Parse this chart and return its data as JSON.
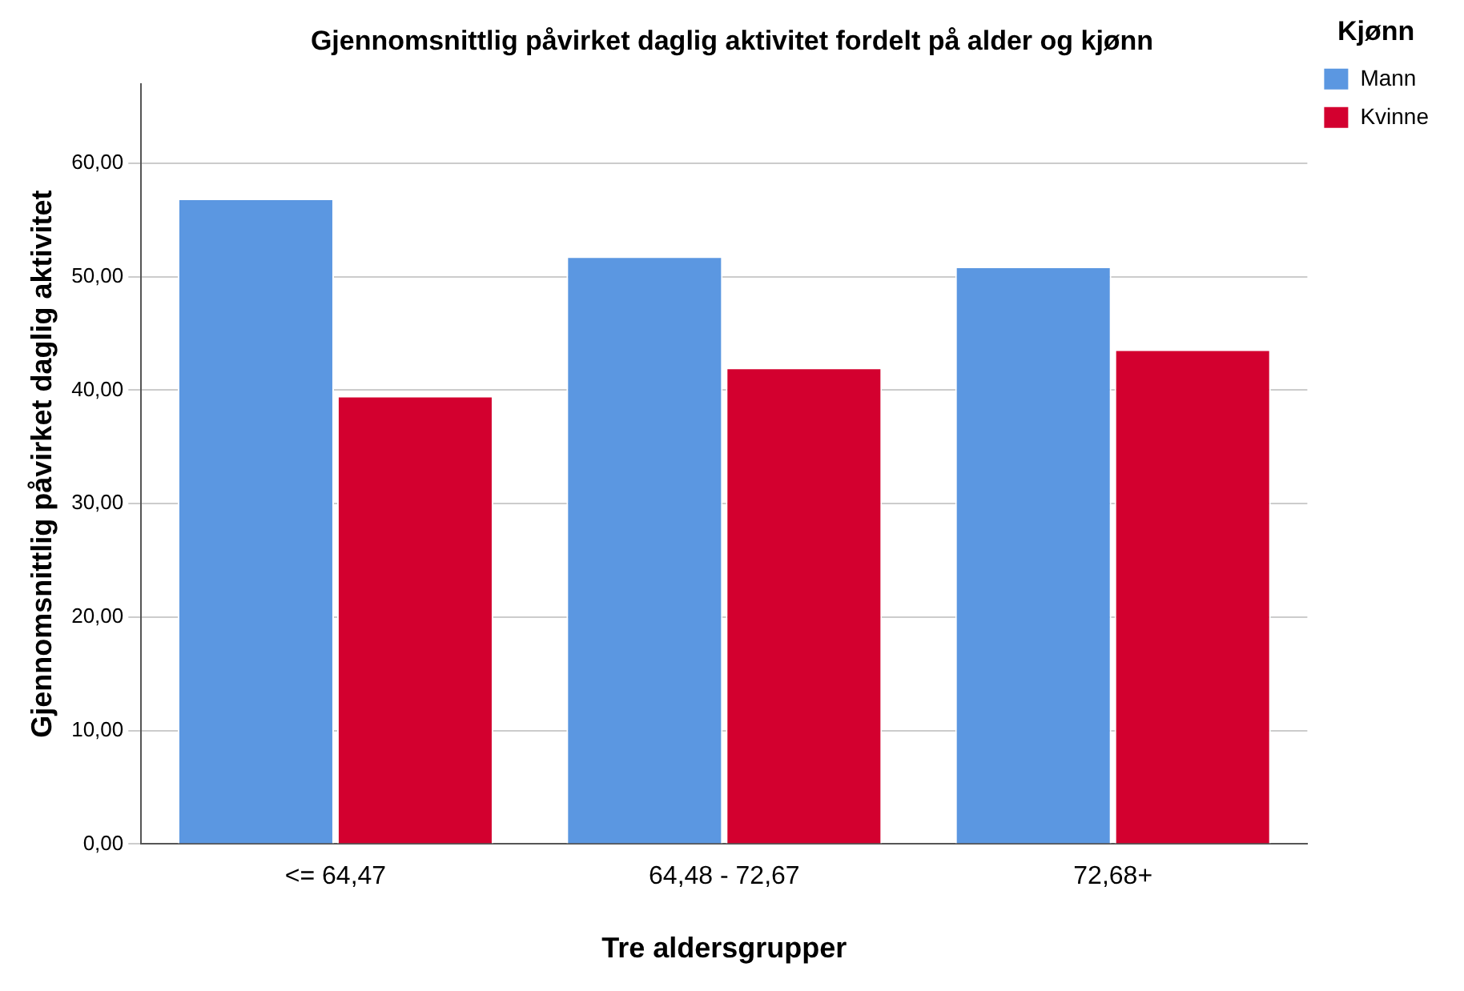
{
  "chart_data": {
    "type": "bar",
    "title": "Gjennomsnittlig påvirket daglig aktivitet fordelt på alder og kjønn",
    "xlabel": "Tre aldersgrupper",
    "ylabel": "Gjennomsnittlig påvirket daglig aktivitet",
    "legend_title": "Kjønn",
    "legend": "top right",
    "grid": "y",
    "categories": [
      "<= 64,47",
      "64,48 - 72,67",
      "72,68+"
    ],
    "series": [
      {
        "name": "Mann",
        "color": "#5b97e1",
        "values": [
          56.9,
          51.8,
          50.9
        ]
      },
      {
        "name": "Kvinne",
        "color": "#d3002f",
        "values": [
          39.5,
          42.0,
          43.6
        ]
      }
    ],
    "ylim": [
      0,
      67
    ],
    "yticks": [
      {
        "value": 0,
        "label": "0,00"
      },
      {
        "value": 10,
        "label": "10,00"
      },
      {
        "value": 20,
        "label": "20,00"
      },
      {
        "value": 30,
        "label": "30,00"
      },
      {
        "value": 40,
        "label": "40,00"
      },
      {
        "value": 50,
        "label": "50,00"
      },
      {
        "value": 60,
        "label": "60,00"
      }
    ]
  }
}
